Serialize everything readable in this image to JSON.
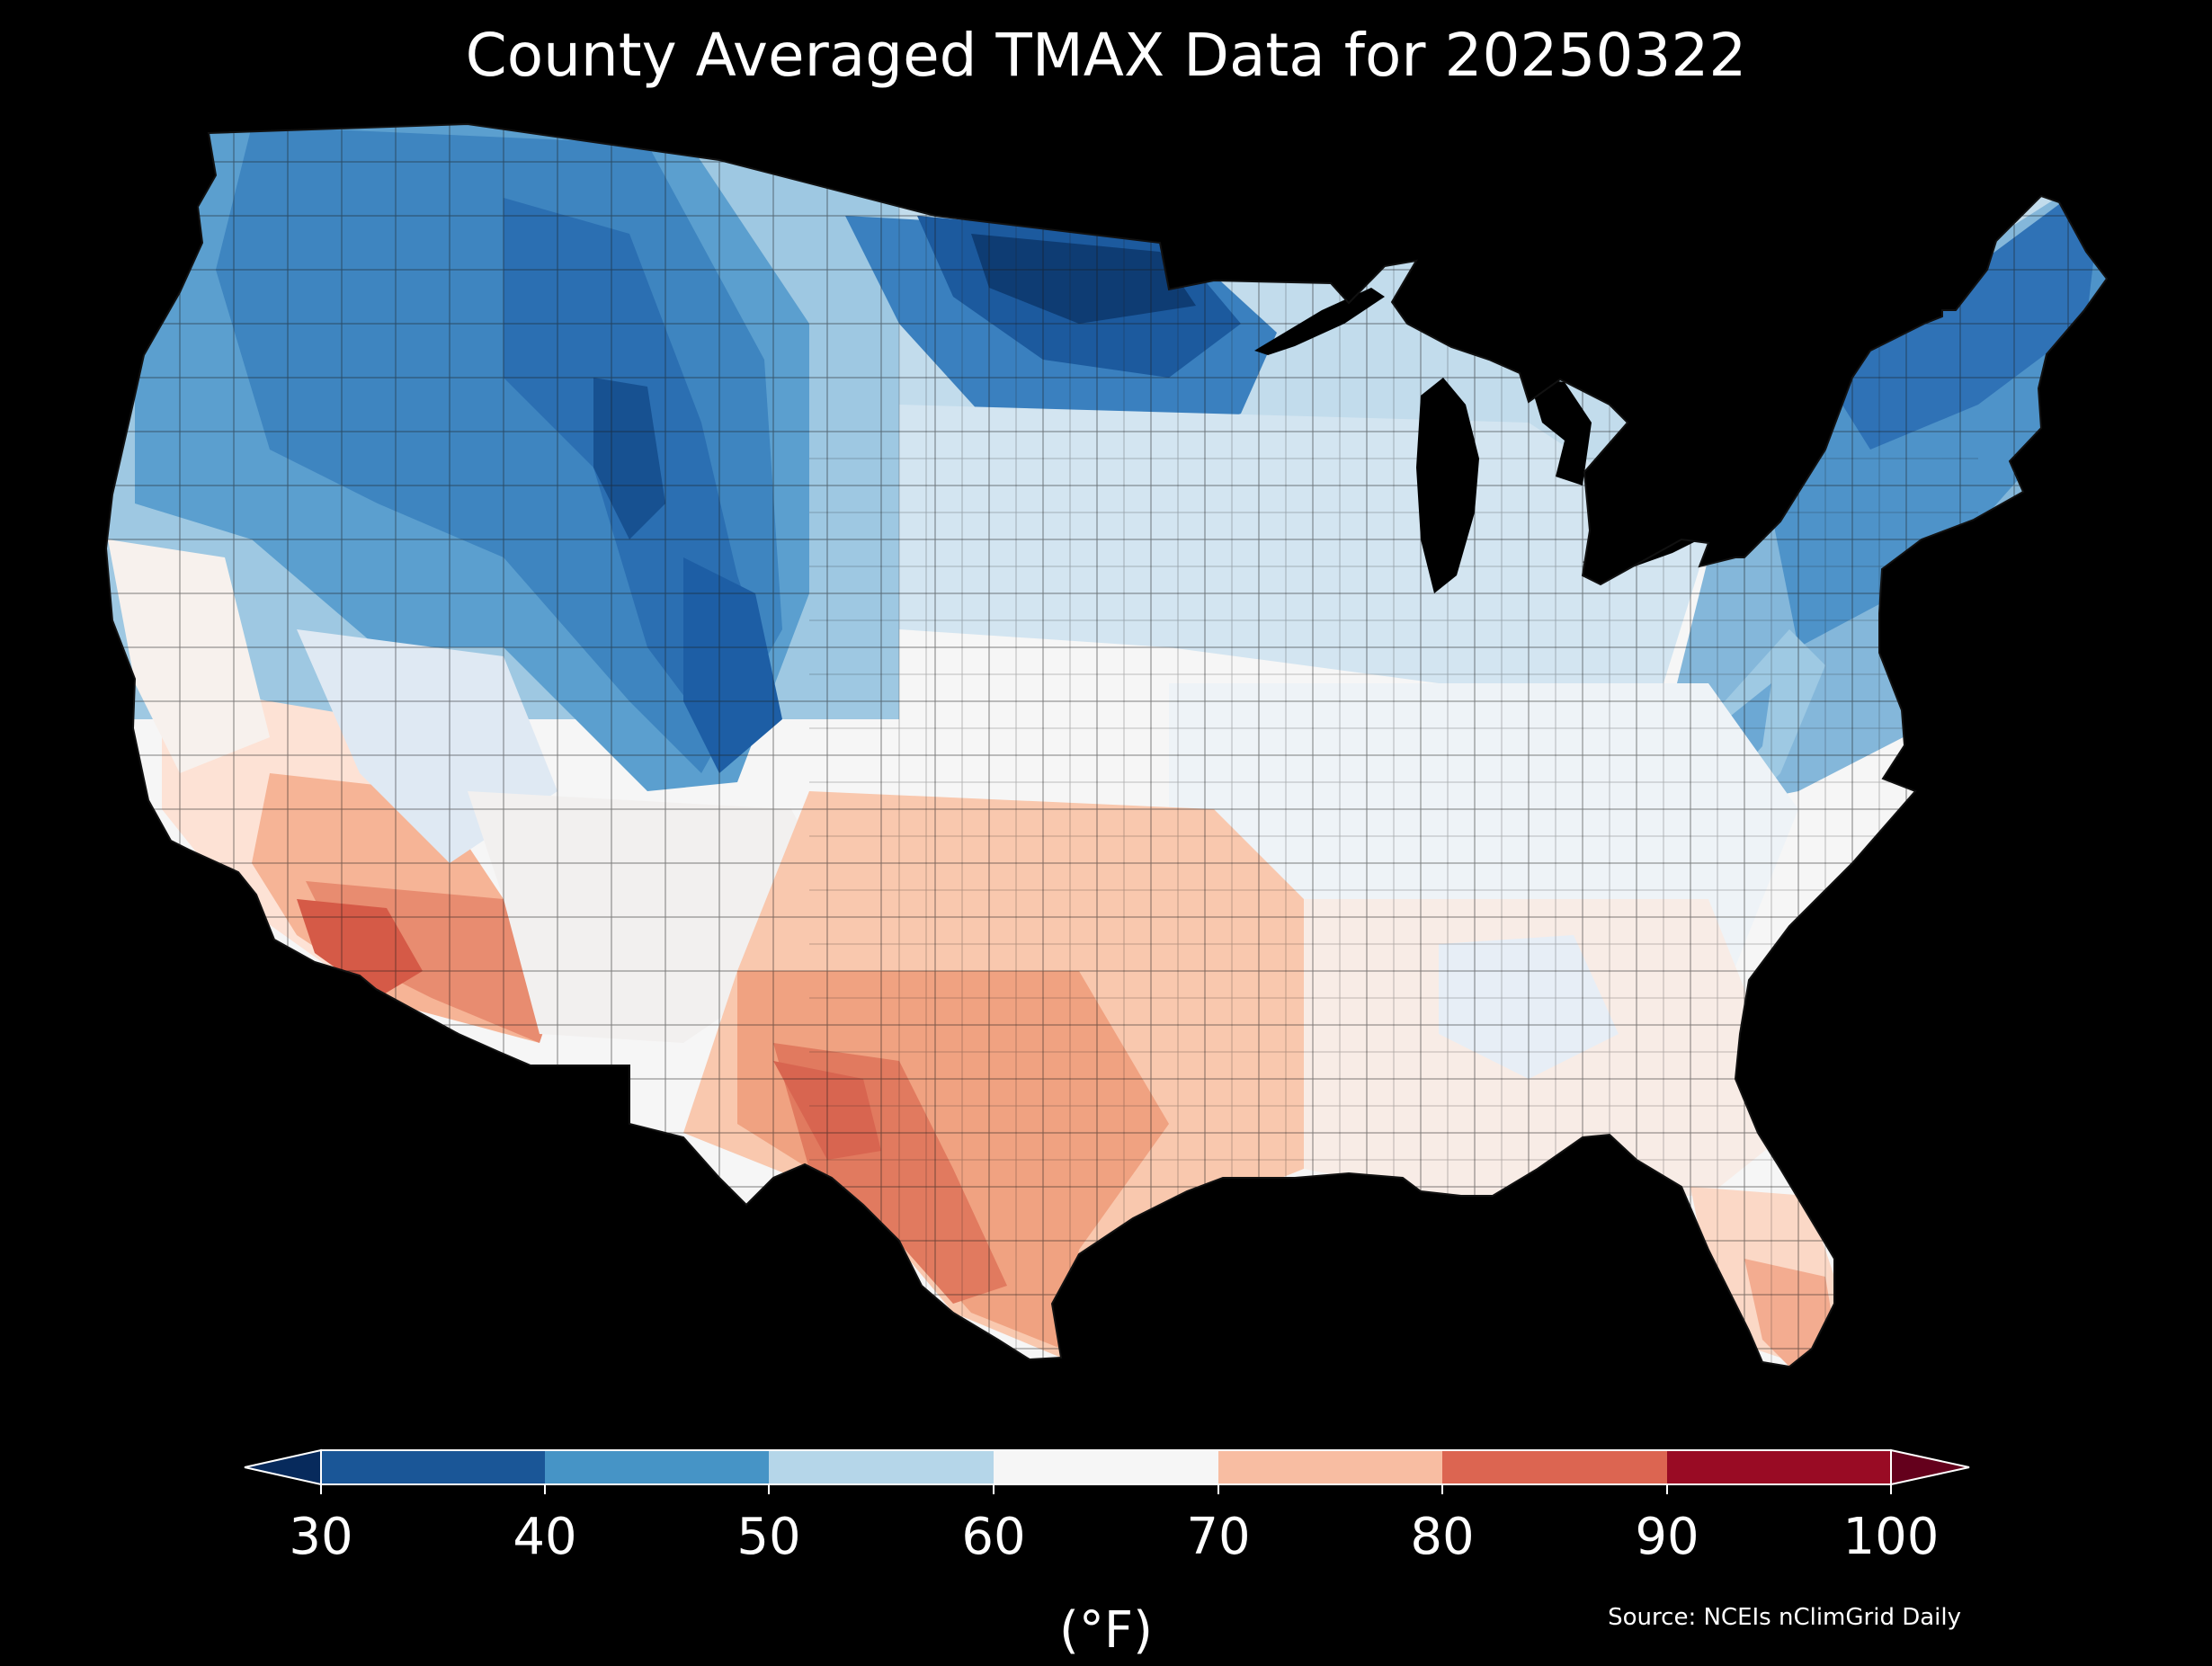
{
  "title": "County Averaged TMAX Data for 20250322",
  "legend": {
    "ticks": [
      "30",
      "40",
      "50",
      "60",
      "70",
      "80",
      "90",
      "100"
    ],
    "unit": "(°F)",
    "bins": [
      {
        "range": "30-40",
        "color": "#1a5697"
      },
      {
        "range": "40-50",
        "color": "#4694c6"
      },
      {
        "range": "50-60",
        "color": "#b5d6e9"
      },
      {
        "range": "60-70",
        "color": "#f6f6f6"
      },
      {
        "range": "70-80",
        "color": "#f8bda2"
      },
      {
        "range": "80-90",
        "color": "#dc6551"
      },
      {
        "range": "90-100",
        "color": "#990b24"
      }
    ],
    "under_color": "#072a5c",
    "over_color": "#64001c"
  },
  "source": "Source: NCEIs nClimGrid Daily",
  "colors": {
    "background": "#000000",
    "border": "#1b1b1b"
  }
}
